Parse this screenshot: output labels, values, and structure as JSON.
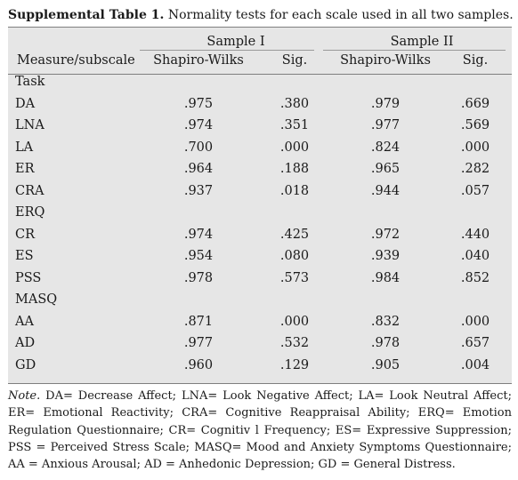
{
  "caption": {
    "label": "Supplemental Table 1.",
    "text": "Normality tests for each scale used in all two samples."
  },
  "table": {
    "samples": [
      "Sample I",
      "Sample II"
    ],
    "columns": {
      "measure": "Measure/subscale",
      "sw1": "Shapiro-Wilks",
      "sig1": "Sig.",
      "sw2": "Shapiro-Wilks",
      "sig2": "Sig."
    },
    "groups": [
      {
        "name": "Task",
        "rows": [
          {
            "label": "DA",
            "sw1": ".975",
            "sig1": ".380",
            "sw2": ".979",
            "sig2": ".669"
          },
          {
            "label": "LNA",
            "sw1": ".974",
            "sig1": ".351",
            "sw2": ".977",
            "sig2": ".569"
          },
          {
            "label": "LA",
            "sw1": ".700",
            "sig1": ".000",
            "sw2": ".824",
            "sig2": ".000"
          },
          {
            "label": "ER",
            "sw1": ".964",
            "sig1": ".188",
            "sw2": ".965",
            "sig2": ".282"
          },
          {
            "label": "CRA",
            "sw1": ".937",
            "sig1": ".018",
            "sw2": ".944",
            "sig2": ".057"
          }
        ]
      },
      {
        "name": "ERQ",
        "rows": [
          {
            "label": "CR",
            "sw1": ".974",
            "sig1": ".425",
            "sw2": ".972",
            "sig2": ".440"
          },
          {
            "label": "ES",
            "sw1": ".954",
            "sig1": ".080",
            "sw2": ".939",
            "sig2": ".040"
          },
          {
            "label": "PSS",
            "sw1": ".978",
            "sig1": ".573",
            "sw2": ".984",
            "sig2": ".852"
          }
        ]
      },
      {
        "name": "MASQ",
        "rows": [
          {
            "label": "AA",
            "sw1": ".871",
            "sig1": ".000",
            "sw2": ".832",
            "sig2": ".000"
          },
          {
            "label": "AD",
            "sw1": ".977",
            "sig1": ".532",
            "sw2": ".978",
            "sig2": ".657"
          },
          {
            "label": "GD",
            "sw1": ".960",
            "sig1": ".129",
            "sw2": ".905",
            "sig2": ".004"
          }
        ]
      }
    ]
  },
  "note": {
    "label": "Note.",
    "text": "DA= Decrease Affect; LNA= Look Negative Affect; LA= Look Neutral Affect; ER= Emotional Reactivity; CRA= Cognitive Reappraisal Ability; ERQ= Emotion Regulation Questionnaire; CR= Cognitiv l Frequency; ES= Expressive Suppression; PSS = Perceived Stress Scale; MASQ= Mood and Anxiety Symptoms Questionnaire; AA = Anxious Arousal; AD = Anhedonic Depression; GD = General Distress."
  }
}
